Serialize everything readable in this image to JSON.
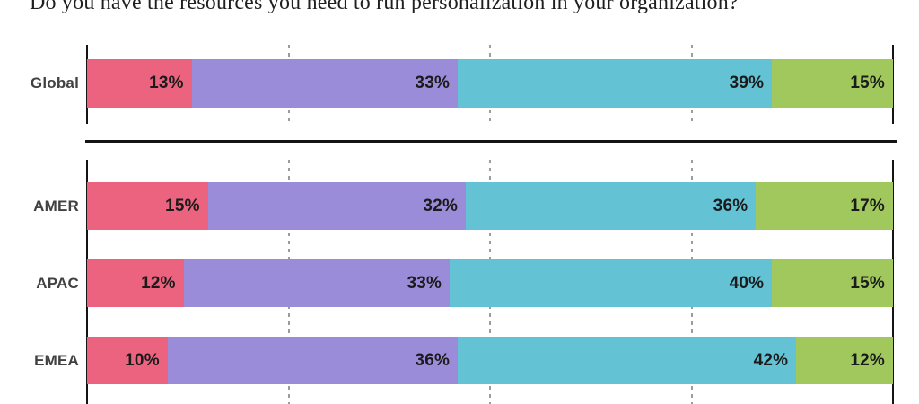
{
  "title": "Do you have the resources you need to run personalization in your organization?",
  "colors": {
    "segment_1": "#EC6380",
    "segment_2": "#9A8CD8",
    "segment_3": "#63C3D5",
    "segment_4": "#A0C85C",
    "axis": "#141414",
    "gridline": "#9C9C9C",
    "value_label": "#1B1B1B",
    "row_label": "#414141"
  },
  "chart_data": {
    "type": "bar",
    "orientation": "horizontal",
    "stacked": true,
    "unit": "%",
    "xlim": [
      0,
      100
    ],
    "gridlines_at": [
      25,
      50,
      75
    ],
    "grid": "dashed",
    "legend_position": "none",
    "title": "Do you have the resources you need to run personalization in your organization?",
    "xlabel": "",
    "ylabel": "",
    "segment_colors": [
      "#EC6380",
      "#9A8CD8",
      "#63C3D5",
      "#A0C85C"
    ],
    "sections": [
      {
        "id": "global",
        "rows": [
          {
            "label": "Global",
            "values": [
              13,
              33,
              39,
              15
            ],
            "value_labels": [
              "13%",
              "33%",
              "39%",
              "15%"
            ]
          }
        ]
      },
      {
        "id": "regions",
        "rows": [
          {
            "label": "AMER",
            "values": [
              15,
              32,
              36,
              17
            ],
            "value_labels": [
              "15%",
              "32%",
              "36%",
              "17%"
            ]
          },
          {
            "label": "APAC",
            "values": [
              12,
              33,
              40,
              15
            ],
            "value_labels": [
              "12%",
              "33%",
              "40%",
              "15%"
            ]
          },
          {
            "label": "EMEA",
            "values": [
              10,
              36,
              42,
              12
            ],
            "value_labels": [
              "10%",
              "36%",
              "42%",
              "12%"
            ]
          }
        ]
      }
    ]
  }
}
